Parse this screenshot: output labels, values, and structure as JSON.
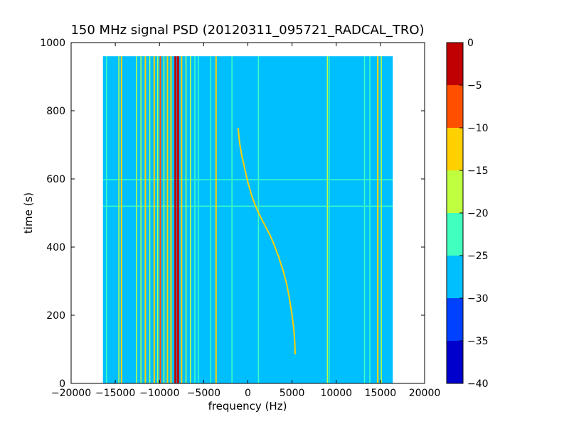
{
  "chart_data": {
    "type": "heatmap",
    "title": "150 MHz signal PSD (20120311_095721_RADCAL_TRO)",
    "xlabel": "frequency (Hz)",
    "ylabel": "time (s)",
    "xlim": [
      -20000,
      20000
    ],
    "ylim": [
      0,
      1000
    ],
    "x_ticks": [
      "−20000",
      "−15000",
      "−10000",
      "−5000",
      "0",
      "5000",
      "10000",
      "15000",
      "20000"
    ],
    "y_ticks": [
      "0",
      "200",
      "400",
      "600",
      "800",
      "1000"
    ],
    "data_extent": {
      "x": [
        -16400,
        16400
      ],
      "y": [
        0,
        960
      ]
    },
    "background_level": -27.5,
    "colorbar": {
      "ticks": [
        "0",
        "−5",
        "−10",
        "−15",
        "−20",
        "−25",
        "−30",
        "−35",
        "−40"
      ],
      "levels": [
        -40,
        -35,
        -30,
        -25,
        -20,
        -15,
        -10,
        -5,
        0
      ],
      "colors": [
        "#0000cc",
        "#0040ff",
        "#00bfff",
        "#40ffbf",
        "#bfff40",
        "#ffd000",
        "#ff5000",
        "#c00000"
      ]
    },
    "vertical_lines": [
      {
        "x": -16000,
        "level": -22
      },
      {
        "x": -14600,
        "level": -17
      },
      {
        "x": -14300,
        "level": -13
      },
      {
        "x": -12600,
        "level": -17
      },
      {
        "x": -12100,
        "level": -17
      },
      {
        "x": -11600,
        "level": -13
      },
      {
        "x": -11100,
        "level": -17
      },
      {
        "x": -10600,
        "level": -13
      },
      {
        "x": -10200,
        "level": -17
      },
      {
        "x": -9900,
        "level": -8
      },
      {
        "x": -9500,
        "level": -17
      },
      {
        "x": -9100,
        "level": -13
      },
      {
        "x": -8700,
        "level": -13
      },
      {
        "x": -8200,
        "level": -2
      },
      {
        "x": -7900,
        "level": -2
      },
      {
        "x": -7500,
        "level": -13
      },
      {
        "x": -7000,
        "level": -17
      },
      {
        "x": -6500,
        "level": -17
      },
      {
        "x": -6000,
        "level": -22
      },
      {
        "x": -5600,
        "level": -22
      },
      {
        "x": -4200,
        "level": -22
      },
      {
        "x": -3600,
        "level": -13
      },
      {
        "x": -1800,
        "level": -22
      },
      {
        "x": 1200,
        "level": -22
      },
      {
        "x": 9000,
        "level": -17
      },
      {
        "x": 9200,
        "level": -22
      },
      {
        "x": 13200,
        "level": -22
      },
      {
        "x": 13800,
        "level": -22
      },
      {
        "x": 14700,
        "level": -13
      },
      {
        "x": 15100,
        "level": -17
      }
    ],
    "horizontal_lines": [
      {
        "y": 598,
        "level": -22
      },
      {
        "y": 520,
        "level": -22
      }
    ],
    "curve": {
      "level": -13,
      "points": [
        [
          -1100,
          750
        ],
        [
          -1000,
          720
        ],
        [
          -900,
          700
        ],
        [
          -700,
          670
        ],
        [
          -400,
          635
        ],
        [
          0,
          590
        ],
        [
          500,
          545
        ],
        [
          1000,
          512
        ],
        [
          1500,
          485
        ],
        [
          2000,
          460
        ],
        [
          2500,
          435
        ],
        [
          3000,
          405
        ],
        [
          3500,
          370
        ],
        [
          4000,
          330
        ],
        [
          4400,
          290
        ],
        [
          4700,
          250
        ],
        [
          5000,
          200
        ],
        [
          5200,
          160
        ],
        [
          5300,
          120
        ],
        [
          5350,
          85
        ]
      ]
    }
  }
}
